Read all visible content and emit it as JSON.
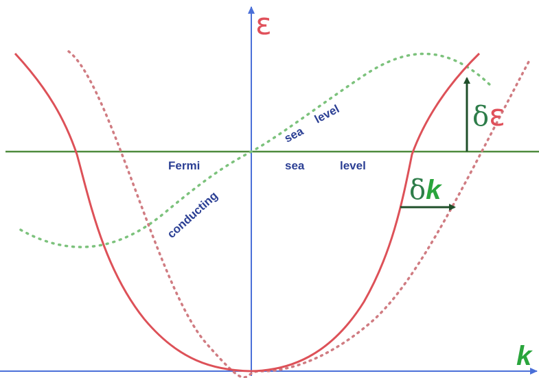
{
  "axes": {
    "y_label": "ε",
    "x_label": "k"
  },
  "fermi_level": {
    "words": [
      "Fermi",
      "sea",
      "level"
    ]
  },
  "tilted_level": {
    "words": [
      "conducting",
      "sea",
      "level"
    ]
  },
  "delta_energy": {
    "delta": "δ",
    "symbol": "ε"
  },
  "delta_k": {
    "delta": "δ",
    "symbol": "k"
  },
  "colors": {
    "axis": "#4a6fd8",
    "fermi_line": "#4d8a3c",
    "band": "#dd5158",
    "band_shifted": "#d07c82",
    "tilted_level": "#7cc27c",
    "label_text": "#2b3f94",
    "arrow": "#1f4f2a"
  }
}
